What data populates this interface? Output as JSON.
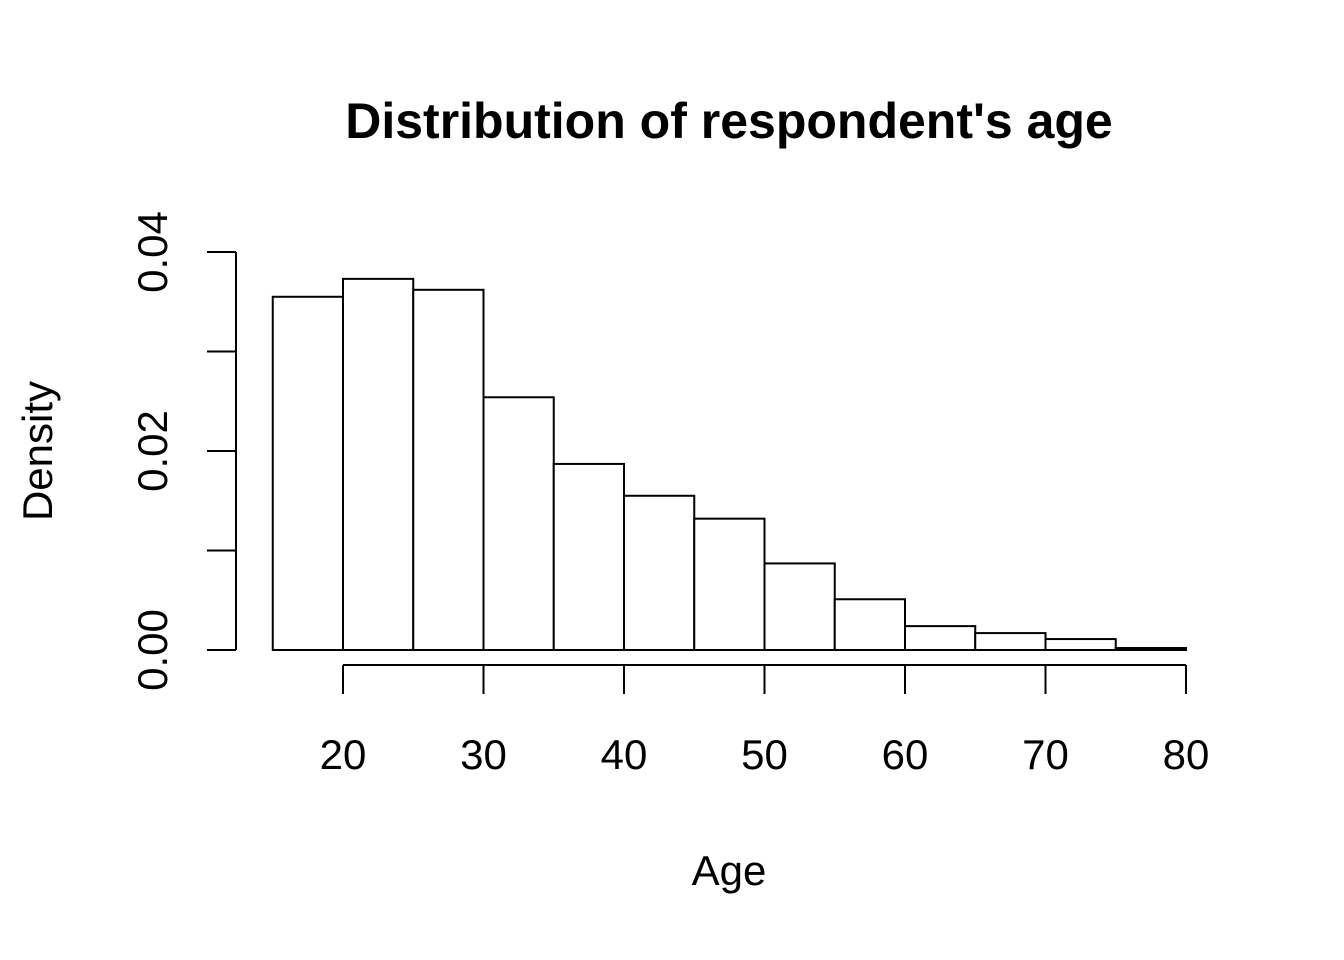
{
  "chart_data": {
    "type": "histogram",
    "title": "Distribution of respondent's age",
    "xlabel": "Age",
    "ylabel": "Density",
    "bin_edges": [
      15,
      20,
      25,
      30,
      35,
      40,
      45,
      50,
      55,
      60,
      65,
      70,
      75,
      80
    ],
    "values": [
      0.0355,
      0.0373,
      0.0362,
      0.0254,
      0.0187,
      0.0155,
      0.0132,
      0.0087,
      0.0051,
      0.0024,
      0.0017,
      0.0011,
      0.0002
    ],
    "x_ticks": [
      20,
      30,
      40,
      50,
      60,
      70,
      80
    ],
    "x_tick_labels": [
      "20",
      "30",
      "40",
      "50",
      "60",
      "70",
      "80"
    ],
    "x_axis_range": [
      20,
      80
    ],
    "y_ticks": [
      0,
      0.01,
      0.02,
      0.03,
      0.04
    ],
    "y_tick_labels": [
      "0.00",
      "",
      "0.02",
      "",
      "0.04"
    ],
    "ylim": [
      0,
      0.04
    ],
    "grid": false,
    "legend": false,
    "colors": {
      "bar_fill": "#ffffff",
      "bar_stroke": "#000000"
    }
  }
}
